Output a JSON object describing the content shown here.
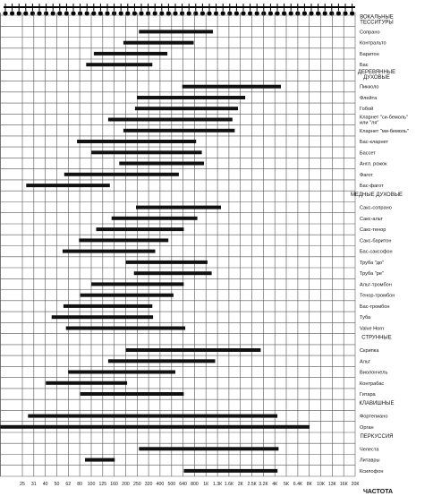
{
  "chart_data": {
    "type": "bar",
    "orientation": "horizontal-range",
    "xlabel": "ЧАСТОТА",
    "x_scale": "log",
    "grid": true,
    "xticks": [
      "25",
      "31",
      "40",
      "50",
      "62",
      "80",
      "100",
      "125",
      "160",
      "200",
      "250",
      "320",
      "400",
      "500",
      "640",
      "800",
      "1К",
      "1.3К",
      "1.6К",
      "2К",
      "2.5К",
      "3.2К",
      "4К",
      "5К",
      "6.4К",
      "8К",
      "10К",
      "13К",
      "16К",
      "20К"
    ],
    "sections": [
      {
        "title": "ВОКАЛЬНЫЕ ТЕССИТУРЫ",
        "title_lines": [
          "ВОКАЛЬНЫЕ",
          "ТЕССИТУРЫ"
        ],
        "rows": [
          {
            "label": "Сопрано",
            "lines": [
              "Сопрано"
            ],
            "range": [
              260,
              1150
            ]
          },
          {
            "label": "Контральто",
            "lines": [
              "Контральто"
            ],
            "range": [
              190,
              780
            ]
          },
          {
            "label": "Баритон",
            "lines": [
              "Баритон"
            ],
            "range": [
              105,
              460
            ]
          },
          {
            "label": "Бас",
            "lines": [
              "Бас"
            ],
            "range": [
              90,
              340
            ]
          }
        ]
      },
      {
        "title": "ДЕРЕВЯННЫЕ ДУХОВЫЕ",
        "title_lines": [
          "ДЕРЕВЯННЫЕ",
          "ДУХОВЫЕ"
        ],
        "rows": [
          {
            "label": "Пикколо",
            "lines": [
              "Пикколо"
            ],
            "range": [
              620,
              4500
            ]
          },
          {
            "label": "Флейта",
            "lines": [
              "Флейта"
            ],
            "range": [
              250,
              2200
            ]
          },
          {
            "label": "Гобой",
            "lines": [
              "Гобой"
            ],
            "range": [
              240,
              1900
            ]
          },
          {
            "label": "Кларнет \"си-бемоль\" или \"ля\"",
            "lines": [
              "Кларнет \"си-бемоль\"",
              "или \"ля\""
            ],
            "range": [
              140,
              1700
            ]
          },
          {
            "label": "Кларнет \"ми-бемоль\"",
            "lines": [
              "Кларнет \"ми-бемоль\""
            ],
            "range": [
              190,
              1780
            ]
          },
          {
            "label": "Бас-кларнет",
            "lines": [
              "Бас-кларнет"
            ],
            "range": [
              75,
              820
            ]
          },
          {
            "label": "Бассет",
            "lines": [
              "Бассет"
            ],
            "range": [
              100,
              920
            ]
          },
          {
            "label": "Англ. рожок",
            "lines": [
              "Англ. рожок"
            ],
            "range": [
              175,
              960
            ]
          },
          {
            "label": "Фагот",
            "lines": [
              "Фагот"
            ],
            "range": [
              58,
              580
            ]
          },
          {
            "label": "Бас-фагот",
            "lines": [
              "Бас-фагот"
            ],
            "range": [
              27,
              145
            ]
          }
        ]
      },
      {
        "title": "МЕДНЫЕ ДУХОВЫЕ",
        "title_lines": [
          "МЕДНЫЕ ДУХОВЫЕ"
        ],
        "rows": [
          {
            "label": "Сакс-сопрано",
            "lines": [
              "Сакс-сопрано"
            ],
            "range": [
              245,
              1350
            ]
          },
          {
            "label": "Сакс-альт",
            "lines": [
              "Сакс-альт"
            ],
            "range": [
              150,
              840
            ]
          },
          {
            "label": "Сакс-тенор",
            "lines": [
              "Сакс-тенор"
            ],
            "range": [
              110,
              640
            ]
          },
          {
            "label": "Сакс-баритон",
            "lines": [
              "Сакс-баритон"
            ],
            "range": [
              78,
              470
            ]
          },
          {
            "label": "Бас-саксофон",
            "lines": [
              "Бас-саксофон"
            ],
            "range": [
              56,
              360
            ]
          },
          {
            "label": "Труба \"до\"",
            "lines": [
              "Труба \"до\""
            ],
            "range": [
              200,
              1030
            ]
          },
          {
            "label": "Труба \"ре\"",
            "lines": [
              "Труба \"ре\""
            ],
            "range": [
              235,
              1120
            ]
          },
          {
            "label": "Альт-тромбон",
            "lines": [
              "Альт-тромбон"
            ],
            "range": [
              100,
              640
            ]
          },
          {
            "label": "Тенор-тромбон",
            "lines": [
              "Тенор-тромбон"
            ],
            "range": [
              80,
              520
            ]
          },
          {
            "label": "Бас-тромбон",
            "lines": [
              "Бас-тромбон"
            ],
            "range": [
              57,
              340
            ]
          },
          {
            "label": "Туба",
            "lines": [
              "Туба"
            ],
            "range": [
              45,
              345
            ]
          },
          {
            "label": "Valve Horn",
            "lines": [
              "Valve Horn"
            ],
            "range": [
              60,
              660
            ]
          }
        ]
      },
      {
        "title": "СТРУННЫЕ",
        "title_lines": [
          "СТРУННЫЕ"
        ],
        "rows": [
          {
            "label": "Скрипка",
            "lines": [
              "Скрипка"
            ],
            "range": [
              200,
              3000
            ]
          },
          {
            "label": "Альт",
            "lines": [
              "Альт"
            ],
            "range": [
              140,
              1200
            ]
          },
          {
            "label": "Виолончель",
            "lines": [
              "Виолончель"
            ],
            "range": [
              63,
              540
            ]
          },
          {
            "label": "Контрабас",
            "lines": [
              "Контрабас"
            ],
            "range": [
              40,
              205
            ]
          },
          {
            "label": "Гитара",
            "lines": [
              "Гитара"
            ],
            "range": [
              80,
              640
            ]
          }
        ]
      },
      {
        "title": "КЛАВИШНЫЕ",
        "title_lines": [
          "КЛАВИШНЫЕ"
        ],
        "rows": [
          {
            "label": "Фортепиано",
            "lines": [
              "Фортепиано"
            ],
            "range": [
              28,
              4200
            ]
          },
          {
            "label": "Орган",
            "lines": [
              "Орган"
            ],
            "range": [
              16,
              8000
            ]
          }
        ]
      },
      {
        "title": "ПЕРКУССИЯ",
        "title_lines": [
          "ПЕРКУССИЯ"
        ],
        "rows": [
          {
            "label": "Челеста",
            "lines": [
              "Челеста"
            ],
            "range": [
              260,
              4300
            ]
          },
          {
            "label": "Литавры",
            "lines": [
              "Литавры"
            ],
            "range": [
              88,
              160
            ]
          },
          {
            "label": "Ксилофон",
            "lines": [
              "Ксилофон"
            ],
            "range": [
              640,
              4200
            ]
          }
        ]
      }
    ]
  }
}
